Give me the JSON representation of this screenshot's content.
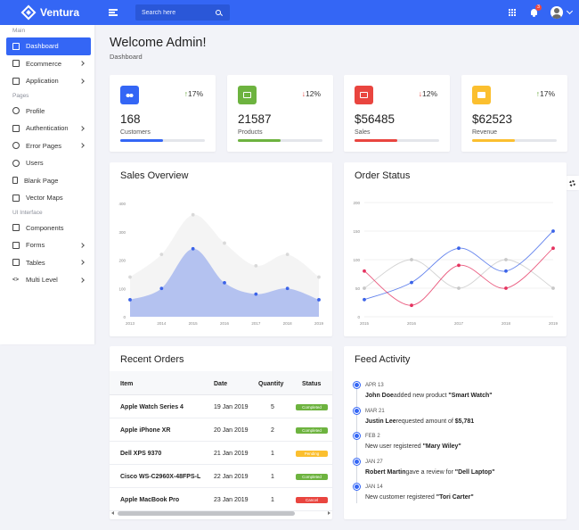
{
  "brand": {
    "name": "Ventura"
  },
  "search": {
    "placeholder": "Search here"
  },
  "header": {
    "notification_count": "3"
  },
  "sidebar": {
    "sections": [
      {
        "label": "Main",
        "items": [
          {
            "label": "Dashboard",
            "icon": "home-icon",
            "active": true,
            "arrow": false
          },
          {
            "label": "Ecommerce",
            "icon": "cart-icon",
            "arrow": true
          },
          {
            "label": "Application",
            "icon": "apps-icon",
            "arrow": true
          }
        ]
      },
      {
        "label": "Pages",
        "items": [
          {
            "label": "Profile",
            "icon": "user-icon",
            "arrow": false
          },
          {
            "label": "Authentication",
            "icon": "lock-icon",
            "arrow": true
          },
          {
            "label": "Error Pages",
            "icon": "alert-icon",
            "arrow": true
          },
          {
            "label": "Users",
            "icon": "users-icon",
            "arrow": false
          },
          {
            "label": "Blank Page",
            "icon": "file-icon",
            "arrow": false
          },
          {
            "label": "Vector Maps",
            "icon": "map-icon",
            "arrow": false
          }
        ]
      },
      {
        "label": "UI Interface",
        "items": [
          {
            "label": "Components",
            "icon": "components-icon",
            "arrow": false
          },
          {
            "label": "Forms",
            "icon": "forms-icon",
            "arrow": true
          },
          {
            "label": "Tables",
            "icon": "table-icon",
            "arrow": true
          },
          {
            "label": "Multi Level",
            "icon": "code-icon",
            "arrow": true
          }
        ]
      }
    ]
  },
  "page": {
    "title": "Welcome Admin!",
    "breadcrumb": "Dashboard"
  },
  "stats": [
    {
      "value": "168",
      "label": "Customers",
      "trend": "17%",
      "direction": "up",
      "color": "#3466f5",
      "progress": 0.5,
      "icon": "people-icon"
    },
    {
      "value": "21587",
      "label": "Products",
      "trend": "12%",
      "direction": "down",
      "color": "#6db33f",
      "progress": 0.5,
      "icon": "product-icon"
    },
    {
      "value": "$56485",
      "label": "Sales",
      "trend": "12%",
      "direction": "down",
      "color": "#e9453f",
      "progress": 0.5,
      "icon": "sales-icon"
    },
    {
      "value": "$62523",
      "label": "Revenue",
      "trend": "17%",
      "direction": "up",
      "color": "#fbbf2f",
      "progress": 0.5,
      "icon": "revenue-icon"
    }
  ],
  "sales_overview": {
    "title": "Sales Overview"
  },
  "order_status": {
    "title": "Order Status"
  },
  "chart_data": [
    {
      "type": "area",
      "title": "Sales Overview",
      "x": [
        "2013",
        "2014",
        "2015",
        "2016",
        "2017",
        "2018",
        "2019"
      ],
      "ylim": [
        0,
        400
      ],
      "yticks": [
        "0",
        "100",
        "200",
        "300",
        "400"
      ],
      "series": [
        {
          "values": [
            140,
            220,
            360,
            260,
            180,
            220,
            140
          ],
          "color": "#d9d9d9"
        },
        {
          "values": [
            60,
            100,
            240,
            120,
            80,
            100,
            60
          ],
          "color": "#3b63e8"
        }
      ]
    },
    {
      "type": "line",
      "title": "Order Status",
      "x": [
        "2015",
        "2016",
        "2017",
        "2018",
        "2019"
      ],
      "ylim": [
        0,
        200
      ],
      "yticks": [
        "0",
        "50",
        "100",
        "150",
        "200"
      ],
      "series": [
        {
          "values": [
            50,
            100,
            50,
            100,
            50
          ],
          "color": "#c8c8c8"
        },
        {
          "values": [
            30,
            60,
            120,
            80,
            150
          ],
          "color": "#3b63e8"
        },
        {
          "values": [
            80,
            20,
            90,
            50,
            120
          ],
          "color": "#e5325f"
        }
      ]
    }
  ],
  "orders": {
    "title": "Recent Orders",
    "columns": [
      "Item",
      "Date",
      "Quantity",
      "Status"
    ],
    "rows": [
      {
        "item": "Apple Watch Series 4",
        "date": "19 Jan 2019",
        "qty": "5",
        "status": "Completed",
        "color": "#6db33f"
      },
      {
        "item": "Apple iPhone XR",
        "date": "20 Jan 2019",
        "qty": "2",
        "status": "Completed",
        "color": "#6db33f"
      },
      {
        "item": "Dell XPS 9370",
        "date": "21 Jan 2019",
        "qty": "1",
        "status": "Pending",
        "color": "#fbbf2f"
      },
      {
        "item": "Cisco WS-C2960X-48FPS-L",
        "date": "22 Jan 2019",
        "qty": "1",
        "status": "Completed",
        "color": "#6db33f"
      },
      {
        "item": "Apple MacBook Pro",
        "date": "23 Jan 2019",
        "qty": "1",
        "status": "Cancel",
        "color": "#e9453f"
      }
    ]
  },
  "feed": {
    "title": "Feed Activity",
    "items": [
      {
        "date": "APR 13",
        "name": "John Doe",
        "text": "added new product ",
        "highlight": "\"Smart Watch\""
      },
      {
        "date": "MAR 21",
        "name": "Justin Lee",
        "text": "requested amount of ",
        "highlight": "$5,781"
      },
      {
        "date": "FEB 2",
        "name": "",
        "text": "New user registered ",
        "highlight": "\"Mary Wiley\""
      },
      {
        "date": "JAN 27",
        "name": "Robert Martin",
        "text": "gave a review for ",
        "highlight": "\"Dell Laptop\""
      },
      {
        "date": "JAN 14",
        "name": "",
        "text": "New customer registered ",
        "highlight": "\"Tori Carter\""
      }
    ]
  }
}
